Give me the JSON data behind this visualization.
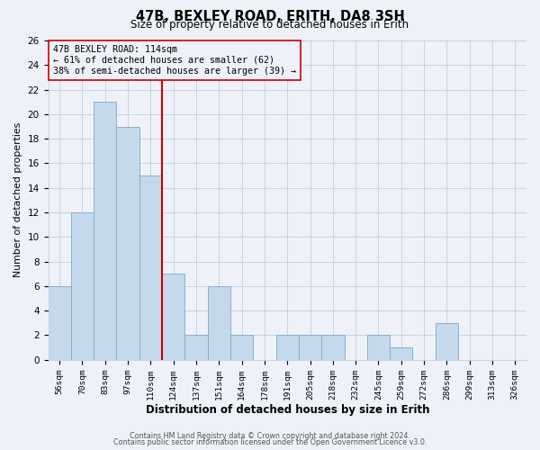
{
  "title": "47B, BEXLEY ROAD, ERITH, DA8 3SH",
  "subtitle": "Size of property relative to detached houses in Erith",
  "xlabel": "Distribution of detached houses by size in Erith",
  "ylabel": "Number of detached properties",
  "bin_labels": [
    "56sqm",
    "70sqm",
    "83sqm",
    "97sqm",
    "110sqm",
    "124sqm",
    "137sqm",
    "151sqm",
    "164sqm",
    "178sqm",
    "191sqm",
    "205sqm",
    "218sqm",
    "232sqm",
    "245sqm",
    "259sqm",
    "272sqm",
    "286sqm",
    "299sqm",
    "313sqm",
    "326sqm"
  ],
  "bar_heights": [
    6,
    12,
    21,
    19,
    15,
    7,
    2,
    6,
    2,
    0,
    2,
    2,
    2,
    0,
    2,
    1,
    0,
    3,
    0,
    0,
    0
  ],
  "bar_color": "#c5d9ed",
  "bar_edgecolor": "#7aaac8",
  "vline_x_index": 4.5,
  "vline_color": "#cc0000",
  "annotation_line1": "47B BEXLEY ROAD: 114sqm",
  "annotation_line2": "← 61% of detached houses are smaller (62)",
  "annotation_line3": "38% of semi-detached houses are larger (39) →",
  "annotation_box_edgecolor": "#cc0000",
  "ylim": [
    0,
    26
  ],
  "yticks": [
    0,
    2,
    4,
    6,
    8,
    10,
    12,
    14,
    16,
    18,
    20,
    22,
    24,
    26
  ],
  "footer_line1": "Contains HM Land Registry data © Crown copyright and database right 2024.",
  "footer_line2": "Contains public sector information licensed under the Open Government Licence v3.0.",
  "bg_color": "#eef2f8",
  "grid_color": "#c8d4e4",
  "title_fontsize": 10.5,
  "subtitle_fontsize": 8.5
}
